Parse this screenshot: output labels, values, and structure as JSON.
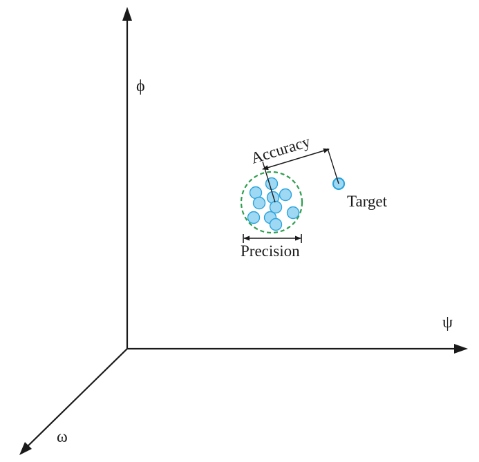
{
  "axes": {
    "vertical": "ϕ",
    "horizontal": "ψ",
    "depth": "ω"
  },
  "labels": {
    "accuracy": "Accuracy",
    "precision": "Precision",
    "target": "Target"
  },
  "cluster_point_count": 10,
  "colors": {
    "axis": "#1a1a1a",
    "point_fill": "#9fd8f3",
    "point_stroke": "#2aa4dc",
    "cluster_ring": "#2e9e4f",
    "annotation": "#1a1a1a"
  }
}
